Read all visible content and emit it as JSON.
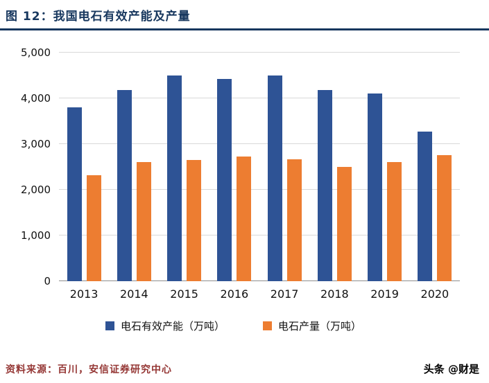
{
  "header": {
    "title": "图 12：我国电石有效产能及产量",
    "accent_color": "#17375E"
  },
  "chart_data": {
    "type": "bar",
    "title": "我国电石有效产能及产量",
    "categories": [
      "2013",
      "2014",
      "2015",
      "2016",
      "2017",
      "2018",
      "2019",
      "2020"
    ],
    "series": [
      {
        "key": "capacity",
        "name": "电石有效产能（万吨）",
        "color": "#2E5395",
        "values": [
          3800,
          4180,
          4500,
          4430,
          4500,
          4180,
          4100,
          3270
        ]
      },
      {
        "key": "output",
        "name": "电石产量（万吨）",
        "color": "#ED7D31",
        "values": [
          2320,
          2600,
          2650,
          2720,
          2670,
          2500,
          2600,
          2760
        ]
      }
    ],
    "xlabel": "",
    "ylabel": "",
    "ylim": [
      0,
      5000
    ],
    "yticks": [
      0,
      1000,
      2000,
      3000,
      4000,
      5000
    ],
    "ytick_labels": [
      "0",
      "1,000",
      "2,000",
      "3,000",
      "4,000",
      "5,000"
    ],
    "grid": true,
    "legend_position": "bottom"
  },
  "footer": {
    "source": "资料来源：百川，安信证券研究中心",
    "watermark": "头条 @财是",
    "source_color": "#953735"
  }
}
